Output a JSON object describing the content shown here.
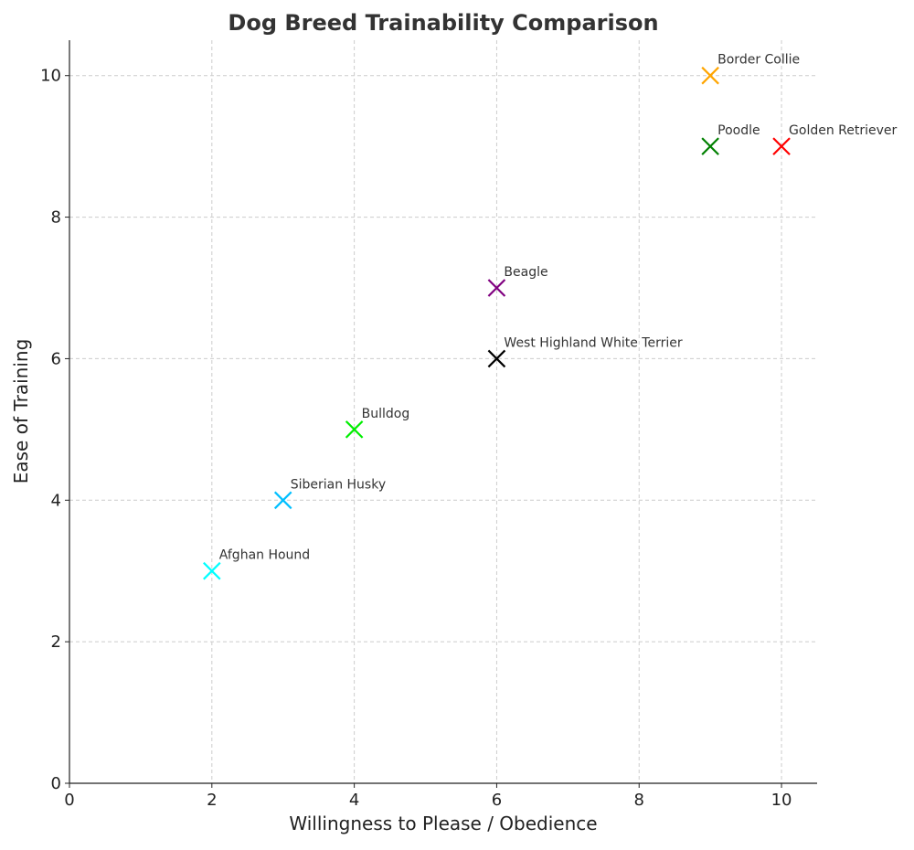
{
  "chart_data": {
    "type": "scatter",
    "title": "Dog Breed Trainability Comparison",
    "xlabel": "Willingness to Please / Obedience",
    "ylabel": "Ease of Training",
    "xlim": [
      0,
      10.5
    ],
    "ylim": [
      0,
      10.5
    ],
    "xticks": [
      "0",
      "2",
      "4",
      "6",
      "8",
      "10"
    ],
    "yticks": [
      "0",
      "2",
      "4",
      "6",
      "8",
      "10"
    ],
    "grid": true,
    "marker": "x",
    "points": [
      {
        "label": "Border Collie",
        "x": 9,
        "y": 10,
        "color": "#ffa500"
      },
      {
        "label": "Poodle",
        "x": 9,
        "y": 9,
        "color": "#008000"
      },
      {
        "label": "Golden Retriever",
        "x": 10,
        "y": 9,
        "color": "#ff0000"
      },
      {
        "label": "Beagle",
        "x": 6,
        "y": 7,
        "color": "#800080"
      },
      {
        "label": "West Highland White Terrier",
        "x": 6,
        "y": 6,
        "color": "#000000"
      },
      {
        "label": "Bulldog",
        "x": 4,
        "y": 5,
        "color": "#00ee00"
      },
      {
        "label": "Siberian Husky",
        "x": 3,
        "y": 4,
        "color": "#00bfff"
      },
      {
        "label": "Afghan Hound",
        "x": 2,
        "y": 3,
        "color": "#00ffff"
      }
    ]
  }
}
